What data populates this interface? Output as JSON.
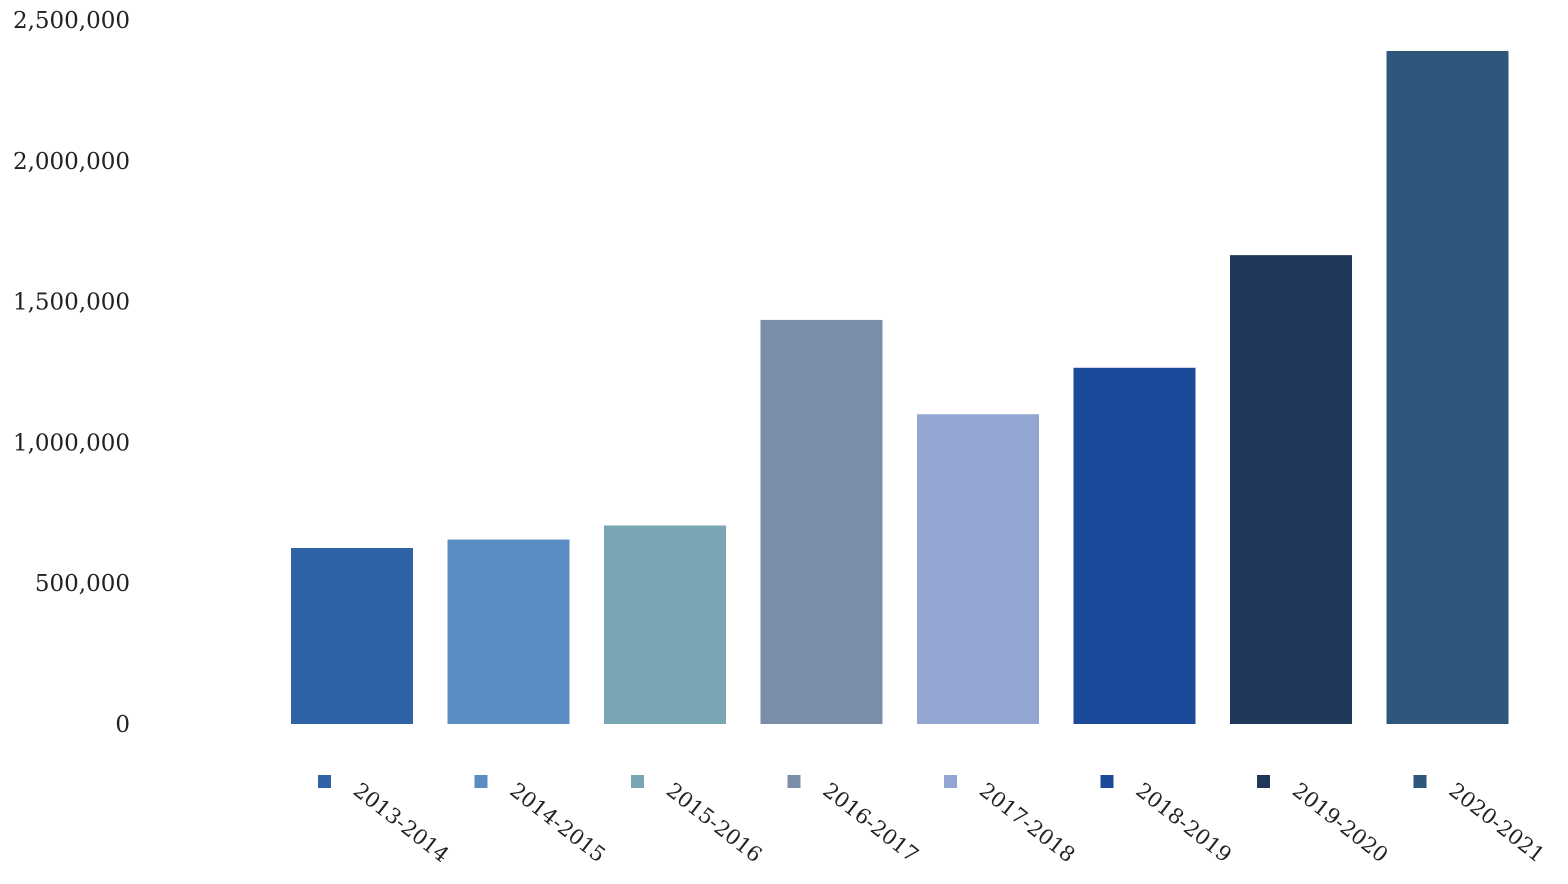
{
  "chart_data": {
    "type": "bar",
    "title": "",
    "xlabel": "",
    "ylabel": "",
    "ylim": [
      0,
      2500000
    ],
    "yticks": [
      0,
      500000,
      1000000,
      1500000,
      2000000,
      2500000
    ],
    "ytick_labels": [
      "0",
      "500,000",
      "1,000,000",
      "1,500,000",
      "2,000,000",
      "2,500,000"
    ],
    "grid": false,
    "categories": [
      "2013-2014",
      "2014-2015",
      "2015-2016",
      "2016-2017",
      "2017-2018",
      "2018-2019",
      "2019-2020",
      "2020-2021"
    ],
    "values": [
      625000,
      655000,
      705000,
      1435000,
      1100000,
      1265000,
      1665000,
      2390000
    ],
    "colors": [
      "#2e63a8",
      "#5b8cc4",
      "#79a6b3",
      "#7b8ea8",
      "#93a5d1",
      "#1c4a9a",
      "#1f3859",
      "#2f577c"
    ],
    "legend_position": "bottom"
  }
}
